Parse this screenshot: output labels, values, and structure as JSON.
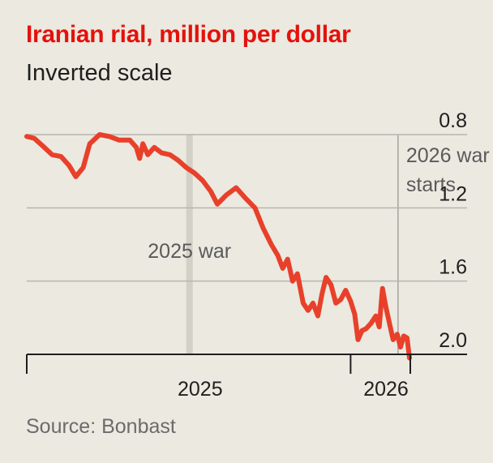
{
  "chart_data": {
    "type": "line",
    "title": "Iranian rial, million per dollar",
    "subtitle": "Inverted scale",
    "source": "Source: Bonbast",
    "y_axis": {
      "inverted": true,
      "ylim": [
        0.8,
        2.0
      ],
      "ticks": [
        "0.8",
        "1.2",
        "1.6",
        "2.0"
      ],
      "tick_values": [
        0.8,
        1.2,
        1.6,
        2.0
      ],
      "grid": true,
      "label_position": "right"
    },
    "x_axis": {
      "xlim": [
        "2024-12-01",
        "2026-03-15"
      ],
      "tick_labels": [
        "2025",
        "2026"
      ],
      "label_dates": [
        "2025-07-01",
        "2026-07-01"
      ],
      "tick_dates": [
        "2024-12-01",
        "2026-01-01",
        "2026-03-15"
      ]
    },
    "annotations": [
      {
        "label": "2025 war",
        "date": "2025-06-18",
        "style": "wide-band"
      },
      {
        "lines": [
          "2026 war",
          "starts"
        ],
        "date": "2026-02-28",
        "style": "line"
      }
    ],
    "series": [
      {
        "color": "#e8402a",
        "points": [
          [
            "2024-12-01",
            0.81
          ],
          [
            "2024-12-10",
            0.82
          ],
          [
            "2024-12-20",
            0.86
          ],
          [
            "2025-01-01",
            0.91
          ],
          [
            "2025-01-12",
            0.92
          ],
          [
            "2025-01-22",
            0.97
          ],
          [
            "2025-01-30",
            1.03
          ],
          [
            "2025-02-08",
            0.98
          ],
          [
            "2025-02-16",
            0.85
          ],
          [
            "2025-02-28",
            0.8
          ],
          [
            "2025-03-12",
            0.81
          ],
          [
            "2025-03-24",
            0.83
          ],
          [
            "2025-04-06",
            0.83
          ],
          [
            "2025-04-14",
            0.87
          ],
          [
            "2025-04-18",
            0.93
          ],
          [
            "2025-04-22",
            0.85
          ],
          [
            "2025-04-28",
            0.91
          ],
          [
            "2025-05-06",
            0.87
          ],
          [
            "2025-05-15",
            0.9
          ],
          [
            "2025-05-25",
            0.91
          ],
          [
            "2025-06-04",
            0.94
          ],
          [
            "2025-06-14",
            0.98
          ],
          [
            "2025-06-24",
            1.01
          ],
          [
            "2025-07-04",
            1.05
          ],
          [
            "2025-07-14",
            1.11
          ],
          [
            "2025-07-22",
            1.18
          ],
          [
            "2025-08-02",
            1.13
          ],
          [
            "2025-08-14",
            1.09
          ],
          [
            "2025-08-26",
            1.15
          ],
          [
            "2025-09-06",
            1.2
          ],
          [
            "2025-09-16",
            1.31
          ],
          [
            "2025-09-26",
            1.4
          ],
          [
            "2025-10-04",
            1.46
          ],
          [
            "2025-10-10",
            1.53
          ],
          [
            "2025-10-16",
            1.48
          ],
          [
            "2025-10-22",
            1.6
          ],
          [
            "2025-10-28",
            1.56
          ],
          [
            "2025-11-04",
            1.72
          ],
          [
            "2025-11-10",
            1.76
          ],
          [
            "2025-11-16",
            1.72
          ],
          [
            "2025-11-22",
            1.79
          ],
          [
            "2025-11-27",
            1.67
          ],
          [
            "2025-12-02",
            1.58
          ],
          [
            "2025-12-08",
            1.62
          ],
          [
            "2025-12-14",
            1.72
          ],
          [
            "2025-12-20",
            1.7
          ],
          [
            "2025-12-26",
            1.65
          ],
          [
            "2026-01-01",
            1.71
          ],
          [
            "2026-01-06",
            1.78
          ],
          [
            "2026-01-10",
            1.92
          ],
          [
            "2026-01-15",
            1.87
          ],
          [
            "2026-01-20",
            1.86
          ],
          [
            "2026-01-26",
            1.83
          ],
          [
            "2026-02-01",
            1.79
          ],
          [
            "2026-02-05",
            1.85
          ],
          [
            "2026-02-09",
            1.64
          ],
          [
            "2026-02-13",
            1.74
          ],
          [
            "2026-02-18",
            1.84
          ],
          [
            "2026-02-22",
            1.92
          ],
          [
            "2026-02-27",
            1.89
          ],
          [
            "2026-03-03",
            1.96
          ],
          [
            "2026-03-07",
            1.9
          ],
          [
            "2026-03-11",
            1.91
          ],
          [
            "2026-03-14",
            2.02
          ]
        ]
      }
    ]
  }
}
